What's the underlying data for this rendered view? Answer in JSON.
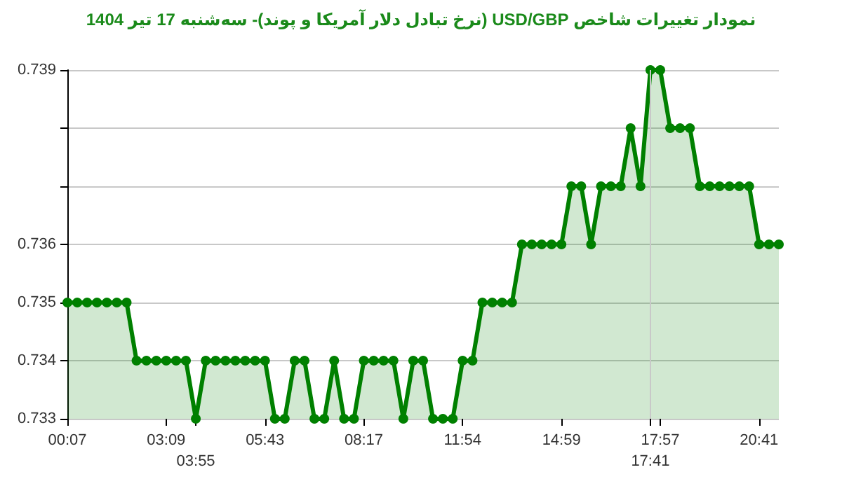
{
  "chart_data": {
    "type": "area",
    "title": "نمودار تغییرات شاخص USD/GBP (نرخ تبادل دلار آمریکا و پوند)- سه‌شنبه  17 تیر 1404",
    "categories": [
      "00:07",
      null,
      null,
      null,
      null,
      null,
      null,
      null,
      null,
      null,
      "03:09",
      null,
      null,
      "03:55",
      null,
      null,
      null,
      null,
      null,
      null,
      "05:43",
      null,
      null,
      null,
      null,
      null,
      null,
      null,
      null,
      null,
      "08:17",
      null,
      null,
      null,
      null,
      null,
      null,
      null,
      null,
      null,
      "11:54",
      null,
      null,
      null,
      null,
      null,
      null,
      null,
      null,
      null,
      "14:59",
      null,
      null,
      null,
      null,
      null,
      null,
      null,
      null,
      "17:41",
      "17:57",
      null,
      null,
      null,
      null,
      null,
      null,
      null,
      null,
      null,
      "20:41",
      null,
      null
    ],
    "series": [
      {
        "color": "#008000",
        "values": [
          0.735,
          0.735,
          0.735,
          0.735,
          0.735,
          0.735,
          0.735,
          0.734,
          0.734,
          0.734,
          0.734,
          0.734,
          0.734,
          0.733,
          0.734,
          0.734,
          0.734,
          0.734,
          0.734,
          0.734,
          0.734,
          0.733,
          0.733,
          0.734,
          0.734,
          0.733,
          0.733,
          0.734,
          0.733,
          0.733,
          0.734,
          0.734,
          0.734,
          0.734,
          0.733,
          0.734,
          0.734,
          0.733,
          0.733,
          0.733,
          0.734,
          0.734,
          0.735,
          0.735,
          0.735,
          0.735,
          0.736,
          0.736,
          0.736,
          0.736,
          0.736,
          0.737,
          0.737,
          0.736,
          0.737,
          0.737,
          0.737,
          0.738,
          0.737,
          0.739,
          0.739,
          0.738,
          0.738,
          0.738,
          0.737,
          0.737,
          0.737,
          0.737,
          0.737,
          0.737,
          0.736,
          0.736,
          0.736
        ]
      }
    ],
    "ylim": [
      0.733,
      0.739
    ],
    "yticks": [
      0.733,
      0.734,
      0.735,
      0.736,
      {
        "value": 0.737,
        "label": null
      },
      {
        "value": 0.738,
        "label": null
      },
      0.739
    ],
    "grid": "y",
    "marker": "circle",
    "line_style": "solid",
    "ref_lines": [
      {
        "axis": "x",
        "value": "17:41",
        "color": "#c8c8c8"
      }
    ]
  }
}
